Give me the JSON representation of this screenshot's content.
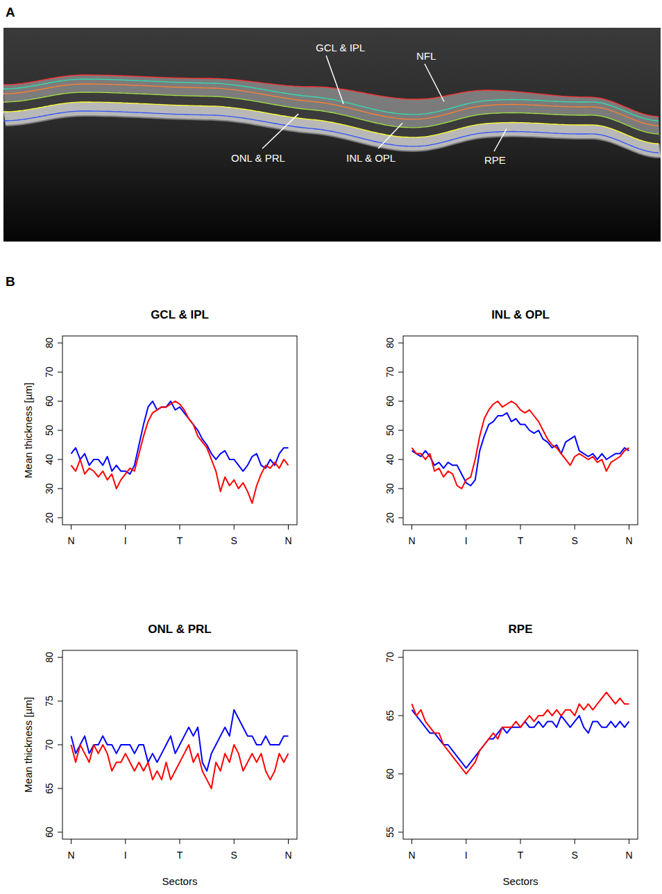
{
  "panel_a": {
    "letter": "A",
    "labels": [
      "GCL & IPL",
      "NFL",
      "ONL & PRL",
      "INL & OPL",
      "RPE"
    ]
  },
  "panel_b_letter": "B",
  "chart_data": [
    {
      "type": "line",
      "title": "GCL & IPL",
      "y_label": "Mean thickness [µm]",
      "categories": [
        "N",
        null,
        null,
        null,
        null,
        null,
        null,
        null,
        null,
        null,
        null,
        null,
        "I",
        null,
        null,
        null,
        null,
        null,
        null,
        null,
        null,
        null,
        null,
        null,
        "T",
        null,
        null,
        null,
        null,
        null,
        null,
        null,
        null,
        null,
        null,
        null,
        "S",
        null,
        null,
        null,
        null,
        null,
        null,
        null,
        null,
        null,
        null,
        null,
        "N"
      ],
      "ylim": [
        17.6,
        82.4
      ],
      "yticks": [
        20,
        30,
        40,
        50,
        60,
        70,
        80
      ],
      "series": [
        {
          "color": "#0000ff",
          "values": [
            42,
            44,
            40,
            42,
            38,
            40,
            40,
            38,
            41,
            36,
            38,
            36,
            36,
            35,
            38,
            45,
            52,
            58,
            60,
            57,
            58,
            58,
            60,
            57,
            58,
            56,
            54,
            52,
            50,
            47,
            45,
            42,
            40,
            42,
            43,
            40,
            40,
            38,
            36,
            38,
            41,
            42,
            38,
            37,
            40,
            38,
            42,
            44,
            44
          ]
        },
        {
          "color": "#ff0000",
          "values": [
            38,
            36,
            40,
            35,
            37,
            36,
            34,
            36,
            33,
            35,
            30,
            33,
            35,
            37,
            36,
            42,
            48,
            53,
            56,
            57,
            58,
            58,
            59,
            60,
            59,
            57,
            54,
            52,
            48,
            46,
            44,
            40,
            36,
            29,
            34,
            31,
            33,
            30,
            32,
            29,
            25,
            31,
            35,
            38,
            37,
            39,
            37,
            40,
            38
          ]
        }
      ]
    },
    {
      "type": "line",
      "title": "INL & OPL",
      "categories": [
        "N",
        null,
        null,
        null,
        null,
        null,
        null,
        null,
        null,
        null,
        null,
        null,
        "I",
        null,
        null,
        null,
        null,
        null,
        null,
        null,
        null,
        null,
        null,
        null,
        "T",
        null,
        null,
        null,
        null,
        null,
        null,
        null,
        null,
        null,
        null,
        null,
        "S",
        null,
        null,
        null,
        null,
        null,
        null,
        null,
        null,
        null,
        null,
        null,
        "N"
      ],
      "ylim": [
        17.6,
        82.4
      ],
      "yticks": [
        20,
        30,
        40,
        50,
        60,
        70,
        80
      ],
      "series": [
        {
          "color": "#0000ff",
          "values": [
            43,
            42,
            41,
            43,
            41,
            38,
            39,
            37,
            39,
            38,
            38,
            35,
            32,
            31,
            33,
            43,
            48,
            52,
            53,
            55,
            55,
            56,
            53,
            54,
            52,
            52,
            50,
            49,
            50,
            47,
            46,
            44,
            45,
            42,
            46,
            47,
            48,
            43,
            42,
            41,
            42,
            40,
            42,
            40,
            41,
            42,
            42,
            44,
            43
          ]
        },
        {
          "color": "#ff0000",
          "values": [
            44,
            42,
            42,
            40,
            42,
            36,
            37,
            34,
            36,
            35,
            31,
            30,
            33,
            34,
            40,
            48,
            54,
            57,
            59,
            60,
            58,
            59,
            60,
            59,
            57,
            56,
            57,
            55,
            53,
            50,
            47,
            45,
            44,
            42,
            40,
            38,
            41,
            42,
            41,
            40,
            41,
            39,
            40,
            36,
            39,
            40,
            41,
            43,
            44
          ]
        }
      ]
    },
    {
      "type": "line",
      "title": "ONL & PRL",
      "y_label": "Mean thickness [µm]",
      "x_label": "Sectors",
      "categories": [
        "N",
        null,
        null,
        null,
        null,
        null,
        null,
        null,
        null,
        null,
        null,
        null,
        "I",
        null,
        null,
        null,
        null,
        null,
        null,
        null,
        null,
        null,
        null,
        null,
        "T",
        null,
        null,
        null,
        null,
        null,
        null,
        null,
        null,
        null,
        null,
        null,
        "S",
        null,
        null,
        null,
        null,
        null,
        null,
        null,
        null,
        null,
        null,
        null,
        "N"
      ],
      "ylim": [
        59.2,
        80.8
      ],
      "yticks": [
        60,
        65,
        70,
        75,
        80
      ],
      "series": [
        {
          "color": "#0000ff",
          "values": [
            71,
            69,
            70,
            71,
            69,
            70,
            70,
            71,
            70,
            70,
            69,
            70,
            70,
            70,
            69,
            70,
            70,
            68,
            69,
            68,
            69,
            70,
            71,
            69,
            70,
            71,
            72,
            71,
            72,
            68,
            67,
            69,
            70,
            71,
            72,
            71,
            74,
            73,
            72,
            71,
            71,
            70,
            70,
            71,
            70,
            70,
            70,
            71,
            71
          ]
        },
        {
          "color": "#ff0000",
          "values": [
            70,
            68,
            70,
            69,
            68,
            70,
            69,
            70,
            69,
            67,
            68,
            68,
            69,
            68,
            67,
            68,
            67,
            68,
            66,
            67,
            66,
            68,
            66,
            67,
            68,
            69,
            70,
            68,
            69,
            67,
            66,
            65,
            68,
            67,
            69,
            68,
            70,
            69,
            67,
            68,
            69,
            68,
            69,
            67,
            66,
            67,
            69,
            68,
            69
          ]
        }
      ]
    },
    {
      "type": "line",
      "title": "RPE",
      "x_label": "Sectors",
      "categories": [
        "N",
        null,
        null,
        null,
        null,
        null,
        null,
        null,
        null,
        null,
        null,
        null,
        "I",
        null,
        null,
        null,
        null,
        null,
        null,
        null,
        null,
        null,
        null,
        null,
        "T",
        null,
        null,
        null,
        null,
        null,
        null,
        null,
        null,
        null,
        null,
        null,
        "S",
        null,
        null,
        null,
        null,
        null,
        null,
        null,
        null,
        null,
        null,
        null,
        "N"
      ],
      "ylim": [
        54.4,
        70.6
      ],
      "yticks": [
        55,
        60,
        65,
        70
      ],
      "series": [
        {
          "color": "#0000ff",
          "values": [
            65.5,
            65,
            64.5,
            64,
            63.5,
            63.5,
            63,
            62.5,
            62.5,
            62,
            61.5,
            61,
            60.5,
            61,
            61.5,
            62,
            62.5,
            63,
            63,
            63.5,
            64,
            63.5,
            64,
            64,
            64,
            64.5,
            64,
            64,
            64.5,
            64,
            64.5,
            64.5,
            64,
            65,
            64.5,
            64,
            64.5,
            65,
            64,
            63.5,
            64.5,
            64.5,
            64,
            64,
            64.5,
            64,
            64.5,
            64,
            64.5
          ]
        },
        {
          "color": "#ff0000",
          "values": [
            66,
            65,
            65.5,
            64.5,
            64,
            63.5,
            63.5,
            62.5,
            62,
            61.5,
            61,
            60.5,
            60,
            60.5,
            61,
            62,
            62.5,
            63,
            63.5,
            63,
            64,
            64,
            64,
            64.5,
            64,
            64.5,
            65,
            64.5,
            65,
            65,
            65.5,
            65,
            65.5,
            65,
            65.5,
            65.5,
            65,
            66,
            65.5,
            66,
            65.5,
            66,
            66.5,
            67,
            66.5,
            66,
            66.5,
            66,
            66
          ]
        }
      ]
    }
  ]
}
